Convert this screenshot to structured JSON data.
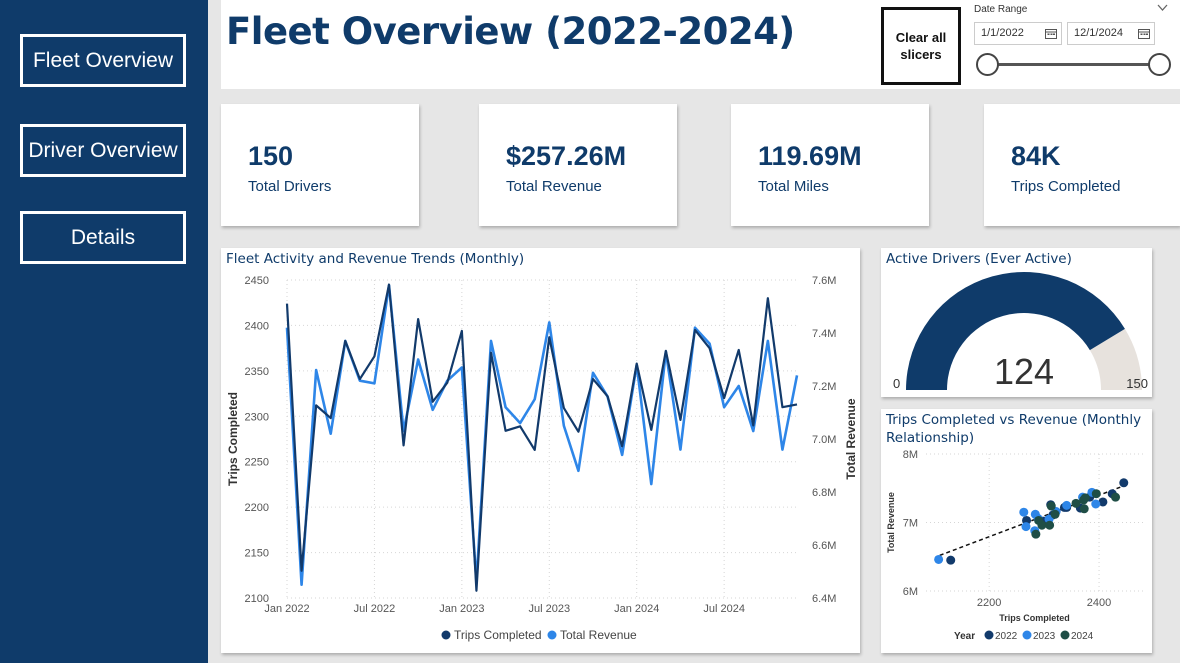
{
  "nav": {
    "fleet_overview": "Fleet Overview",
    "driver_overview": "Driver Overview",
    "details": "Details"
  },
  "header": {
    "title": "Fleet Overview (2022-2024)",
    "clear_line1": "Clear all",
    "clear_line2": "slicers",
    "slicer_title": "Date Range",
    "start_date": "1/1/2022",
    "end_date": "12/1/2024"
  },
  "kpis": [
    {
      "value": "150",
      "label": "Total Drivers"
    },
    {
      "value": "$257.26M",
      "label": "Total Revenue"
    },
    {
      "value": "119.69M",
      "label": "Total Miles"
    },
    {
      "value": "84K",
      "label": "Trips Completed"
    }
  ],
  "colors": {
    "brand": "#0f3b6a",
    "trips_line": "#123a6b",
    "revenue_line": "#2e86e8",
    "gauge_fill": "#0f3b6a",
    "gauge_empty": "#e7e2dd"
  },
  "chart_data": [
    {
      "type": "line",
      "title": "Fleet Activity and Revenue Trends (Monthly)",
      "xlabel": "",
      "ylabel": "Trips Completed",
      "y2label": "Total Revenue",
      "x_tick_labels": [
        "Jan 2022",
        "Jul 2022",
        "Jan 2023",
        "Jul 2023",
        "Jan 2024",
        "Jul 2024"
      ],
      "y_tick_labels": [
        "2100",
        "2150",
        "2200",
        "2250",
        "2300",
        "2350",
        "2400",
        "2450"
      ],
      "y2_tick_labels": [
        "6.4M",
        "6.6M",
        "6.8M",
        "7.0M",
        "7.2M",
        "7.4M",
        "7.6M"
      ],
      "ylim": [
        2100,
        2450
      ],
      "y2lim": [
        6400000,
        7600000
      ],
      "grid": true,
      "legend_position": "bottom",
      "series": [
        {
          "name": "Trips Completed",
          "axis": "left",
          "values": [
            2424,
            2130,
            2312,
            2298,
            2383,
            2341,
            2366,
            2445,
            2268,
            2407,
            2316,
            2337,
            2394,
            2108,
            2370,
            2284,
            2289,
            2263,
            2387,
            2309,
            2283,
            2341,
            2322,
            2267,
            2358,
            2285,
            2372,
            2296,
            2395,
            2375,
            2320,
            2373,
            2290,
            2430,
            2310,
            2313
          ]
        },
        {
          "name": "Total Revenue",
          "axis": "right",
          "values": [
            7420000,
            6450000,
            7260000,
            7020000,
            7370000,
            7220000,
            7210000,
            7580000,
            7030000,
            7300000,
            7110000,
            7220000,
            7270000,
            6460000,
            7370000,
            7120000,
            7060000,
            7150000,
            7440000,
            7050000,
            6880000,
            7250000,
            7160000,
            6940000,
            7280000,
            6830000,
            7330000,
            6960000,
            7420000,
            7360000,
            7120000,
            7200000,
            7030000,
            7370000,
            6960000,
            7240000
          ]
        }
      ]
    },
    {
      "type": "gauge",
      "title": "Active Drivers (Ever Active)",
      "value": 124,
      "min": 0,
      "max": 150,
      "min_label": "0",
      "max_label": "150",
      "value_label": "124"
    },
    {
      "type": "scatter",
      "title": "Trips Completed vs Revenue (Monthly Relationship)",
      "xlabel": "Trips Completed",
      "ylabel": "Total Revenue",
      "x_tick_labels": [
        "2200",
        "2400"
      ],
      "y_tick_labels": [
        "6M",
        "7M",
        "8M"
      ],
      "xlim": [
        2085,
        2480
      ],
      "ylim": [
        6000000,
        8000000
      ],
      "legend_title": "Year",
      "legend_position": "bottom",
      "trendline": {
        "x": [
          2110,
          2450
        ],
        "y": [
          6520000,
          7550000
        ]
      },
      "series": [
        {
          "name": "2022",
          "color": "#123a6b",
          "points": [
            [
              2424,
              7420000
            ],
            [
              2130,
              6450000
            ],
            [
              2312,
              7260000
            ],
            [
              2298,
              7020000
            ],
            [
              2383,
              7370000
            ],
            [
              2341,
              7220000
            ],
            [
              2366,
              7210000
            ],
            [
              2445,
              7580000
            ],
            [
              2268,
              7030000
            ],
            [
              2407,
              7300000
            ],
            [
              2316,
              7110000
            ],
            [
              2337,
              7220000
            ]
          ]
        },
        {
          "name": "2023",
          "color": "#2e86e8",
          "points": [
            [
              2394,
              7270000
            ],
            [
              2108,
              6460000
            ],
            [
              2370,
              7370000
            ],
            [
              2284,
              7120000
            ],
            [
              2289,
              7060000
            ],
            [
              2263,
              7150000
            ],
            [
              2387,
              7440000
            ],
            [
              2309,
              7050000
            ],
            [
              2283,
              6880000
            ],
            [
              2341,
              7250000
            ],
            [
              2322,
              7160000
            ],
            [
              2267,
              6940000
            ]
          ]
        },
        {
          "name": "2024",
          "color": "#1f4e46",
          "points": [
            [
              2358,
              7280000
            ],
            [
              2285,
              6830000
            ],
            [
              2372,
              7330000
            ],
            [
              2296,
              6960000
            ],
            [
              2395,
              7420000
            ],
            [
              2375,
              7360000
            ],
            [
              2320,
              7120000
            ],
            [
              2373,
              7200000
            ],
            [
              2290,
              7030000
            ],
            [
              2430,
              7370000
            ],
            [
              2310,
              6960000
            ],
            [
              2313,
              7240000
            ]
          ]
        }
      ]
    }
  ]
}
